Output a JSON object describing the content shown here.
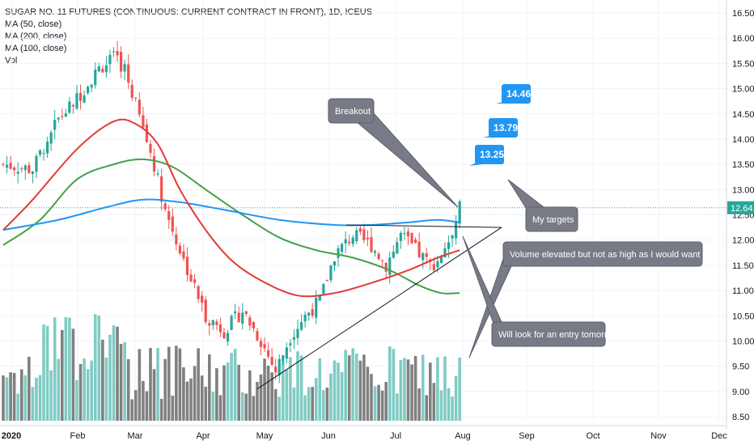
{
  "legend": {
    "title": "SUGAR NO. 11 FUTURES (CONTINUOUS: CURRENT CONTRACT IN FRONT), 1D, ICEUS",
    "ma50": "MA (50, close)",
    "ma200": "MA (200, close)",
    "ma100": "MA (100, close)",
    "vol": "Vol"
  },
  "colors": {
    "up": "#26a69a",
    "down": "#ef5350",
    "vol_up": "#80cbc4",
    "vol_down": "#808080",
    "ma50": "#e53935",
    "ma100": "#43a047",
    "ma200": "#2196f3",
    "note_bg": "#787b86",
    "target_bg": "#2196f3",
    "price_badge": "#26a69a"
  },
  "chart_data": {
    "type": "candlestick",
    "y_range": [
      8.4,
      16.6
    ],
    "y_ticks": [
      "16.50",
      "16.00",
      "15.50",
      "15.00",
      "14.50",
      "14.00",
      "13.50",
      "13.00",
      "12.50",
      "12.00",
      "11.50",
      "11.00",
      "10.50",
      "10.00",
      "9.50",
      "9.00",
      "8.50"
    ],
    "x_ticks": [
      "2020",
      "Feb",
      "Mar",
      "Apr",
      "May",
      "Jun",
      "Jul",
      "Aug",
      "Sep",
      "Oct",
      "Nov",
      "Dec"
    ],
    "last_price": "12.64",
    "price_path": [
      [
        0,
        13.5
      ],
      [
        8,
        13.4
      ],
      [
        14,
        14.3
      ],
      [
        20,
        14.8
      ],
      [
        26,
        15.4
      ],
      [
        30,
        15.6
      ],
      [
        33,
        15.4
      ],
      [
        38,
        14.2
      ],
      [
        41,
        13.5
      ],
      [
        44,
        12.6
      ],
      [
        49,
        11.6
      ],
      [
        55,
        10.5
      ],
      [
        60,
        10.2
      ],
      [
        65,
        10.6
      ],
      [
        70,
        10.0
      ],
      [
        74,
        9.4
      ],
      [
        78,
        10.1
      ],
      [
        82,
        10.5
      ],
      [
        86,
        10.8
      ],
      [
        90,
        11.7
      ],
      [
        95,
        12.1
      ],
      [
        100,
        11.9
      ],
      [
        104,
        11.5
      ],
      [
        108,
        12.1
      ],
      [
        112,
        11.8
      ],
      [
        116,
        11.5
      ],
      [
        118,
        11.6
      ],
      [
        121,
        12.0
      ],
      [
        123,
        12.4
      ],
      [
        124,
        12.64
      ]
    ],
    "ma50": [
      [
        0,
        12.2
      ],
      [
        8,
        12.8
      ],
      [
        20,
        13.8
      ],
      [
        30,
        14.35
      ],
      [
        36,
        14.3
      ],
      [
        42,
        13.9
      ],
      [
        48,
        13.0
      ],
      [
        55,
        12.2
      ],
      [
        62,
        11.6
      ],
      [
        70,
        11.2
      ],
      [
        80,
        10.9
      ],
      [
        90,
        10.95
      ],
      [
        100,
        11.15
      ],
      [
        110,
        11.4
      ],
      [
        118,
        11.65
      ],
      [
        124,
        11.8
      ]
    ],
    "ma100": [
      [
        0,
        11.9
      ],
      [
        10,
        12.4
      ],
      [
        20,
        13.2
      ],
      [
        30,
        13.5
      ],
      [
        38,
        13.6
      ],
      [
        46,
        13.45
      ],
      [
        55,
        13.0
      ],
      [
        65,
        12.5
      ],
      [
        75,
        12.05
      ],
      [
        85,
        11.8
      ],
      [
        95,
        11.65
      ],
      [
        105,
        11.4
      ],
      [
        113,
        11.1
      ],
      [
        119,
        10.95
      ],
      [
        124,
        10.95
      ]
    ],
    "ma200": [
      [
        0,
        12.2
      ],
      [
        15,
        12.4
      ],
      [
        28,
        12.65
      ],
      [
        38,
        12.8
      ],
      [
        48,
        12.75
      ],
      [
        60,
        12.6
      ],
      [
        75,
        12.4
      ],
      [
        90,
        12.3
      ],
      [
        100,
        12.3
      ],
      [
        110,
        12.35
      ],
      [
        118,
        12.4
      ],
      [
        124,
        12.35
      ]
    ],
    "volume_range": [
      0,
      240
    ],
    "annotations": {
      "breakout": "Breakout",
      "my_targets": "My targets",
      "volume_note": "Volume elevated but not as high as I would want to see",
      "entry_note": "Will look for an entry tomorrow"
    },
    "targets": [
      "14.46",
      "13.79",
      "13.25"
    ],
    "triangle_support": [
      [
        65,
        9.35
      ],
      [
        124,
        12.0
      ]
    ],
    "triangle_resistance": [
      [
        86,
        12.3
      ],
      [
        124,
        12.3
      ]
    ]
  }
}
